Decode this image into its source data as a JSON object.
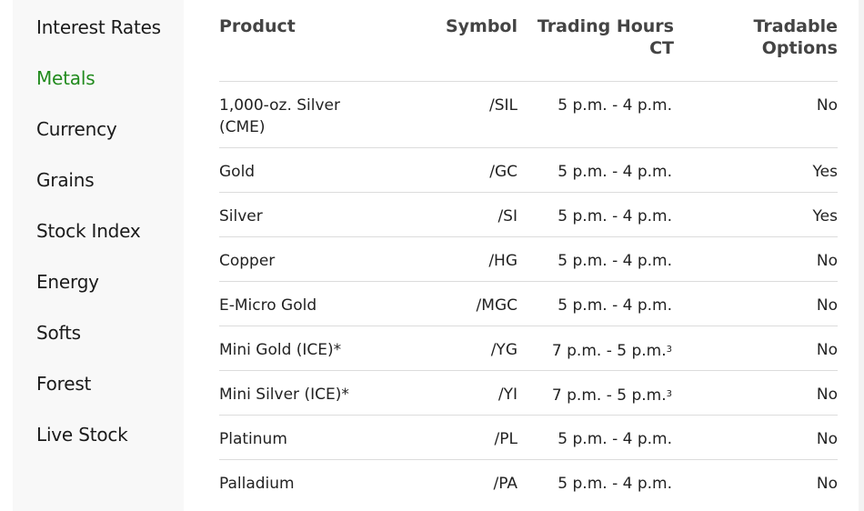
{
  "sidebar": {
    "active_color": "#228b1e",
    "items": [
      {
        "label": "Interest Rates",
        "active": false
      },
      {
        "label": "Metals",
        "active": true
      },
      {
        "label": "Currency",
        "active": false
      },
      {
        "label": "Grains",
        "active": false
      },
      {
        "label": "Stock Index",
        "active": false
      },
      {
        "label": "Energy",
        "active": false
      },
      {
        "label": "Softs",
        "active": false
      },
      {
        "label": "Forest",
        "active": false
      },
      {
        "label": "Live Stock",
        "active": false
      }
    ]
  },
  "table": {
    "headers": {
      "product": "Product",
      "symbol": "Symbol",
      "hours_line1": "Trading Hours",
      "hours_line2": "CT",
      "options_line1": "Tradable",
      "options_line2": "Options"
    },
    "rows": [
      {
        "product_line1": "1,000-oz. Silver",
        "product_line2": "(CME)",
        "symbol": "/SIL",
        "hours": "5 p.m. - 4 p.m.",
        "note": "",
        "options": "No"
      },
      {
        "product_line1": "Gold",
        "product_line2": "",
        "symbol": "/GC",
        "hours": "5 p.m. - 4 p.m.",
        "note": "",
        "options": "Yes"
      },
      {
        "product_line1": "Silver",
        "product_line2": "",
        "symbol": "/SI",
        "hours": "5 p.m. - 4 p.m.",
        "note": "",
        "options": "Yes"
      },
      {
        "product_line1": "Copper",
        "product_line2": "",
        "symbol": "/HG",
        "hours": "5 p.m. - 4 p.m.",
        "note": "",
        "options": "No"
      },
      {
        "product_line1": "E-Micro Gold",
        "product_line2": "",
        "symbol": "/MGC",
        "hours": "5 p.m. - 4 p.m.",
        "note": "",
        "options": "No"
      },
      {
        "product_line1": "Mini Gold (ICE)*",
        "product_line2": "",
        "symbol": "/YG",
        "hours": "7 p.m. - 5 p.m.",
        "note": "3",
        "options": "No"
      },
      {
        "product_line1": "Mini Silver (ICE)*",
        "product_line2": "",
        "symbol": "/YI",
        "hours": "7 p.m. - 5 p.m.",
        "note": "3",
        "options": "No"
      },
      {
        "product_line1": "Platinum",
        "product_line2": "",
        "symbol": "/PL",
        "hours": "5 p.m. - 4 p.m.",
        "note": "",
        "options": "No"
      },
      {
        "product_line1": "Palladium",
        "product_line2": "",
        "symbol": "/PA",
        "hours": "5 p.m. - 4 p.m.",
        "note": "",
        "options": "No"
      }
    ]
  }
}
